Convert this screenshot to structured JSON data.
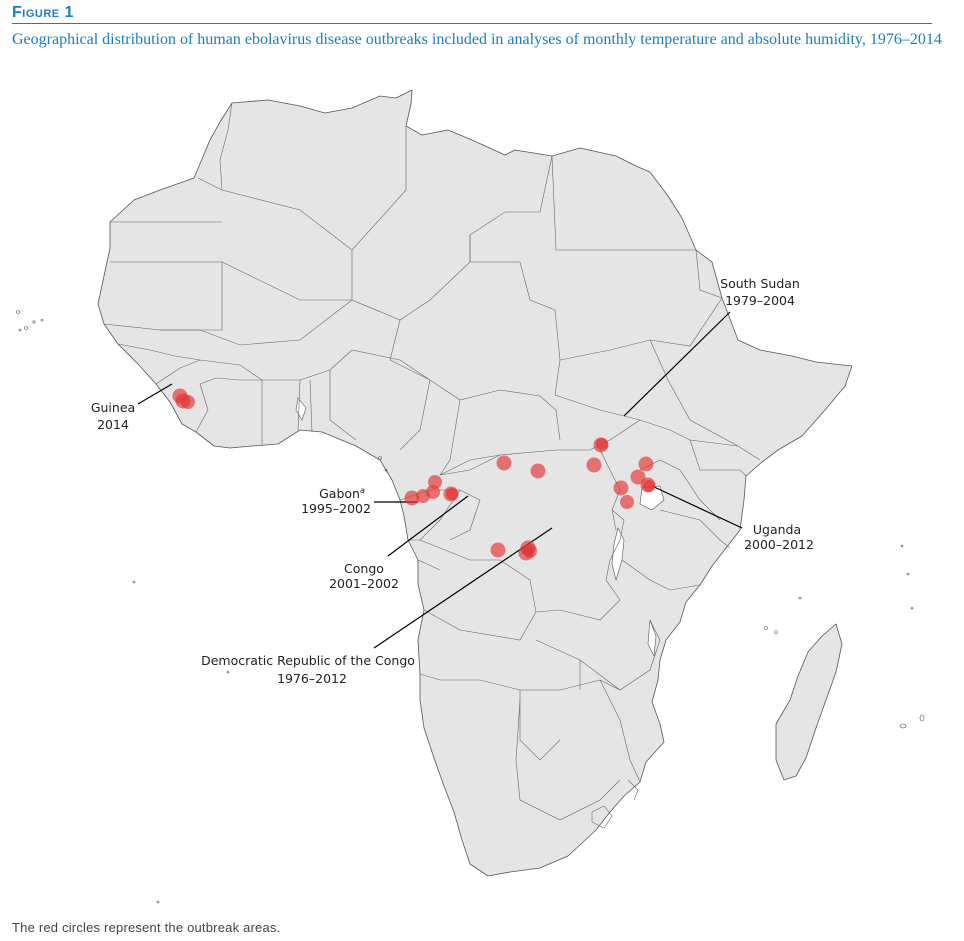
{
  "figure": {
    "label": "Figure 1",
    "title": "Geographical distribution of human ebolavirus disease outbreaks included in analyses of monthly temperature and absolute humidity, 1976–2014",
    "footnote": "The red circles represent the outbreak areas."
  },
  "colors": {
    "accent": "#1a7fb8",
    "land": "#e5e5e5",
    "outbreak": "#e23232"
  },
  "labels": {
    "guinea": {
      "name": "Guinea",
      "years": "2014"
    },
    "south_sudan": {
      "name": "South Sudan",
      "years": "1979–2004"
    },
    "gabon": {
      "name": "Gabon",
      "superscript": "a",
      "years": "1995–2002"
    },
    "congo": {
      "name": "Congo",
      "years": "2001–2002"
    },
    "drc": {
      "name": "Democratic Republic of the Congo",
      "years": "1976–2012"
    },
    "uganda": {
      "name": "Uganda",
      "years": "2000–2012"
    }
  }
}
